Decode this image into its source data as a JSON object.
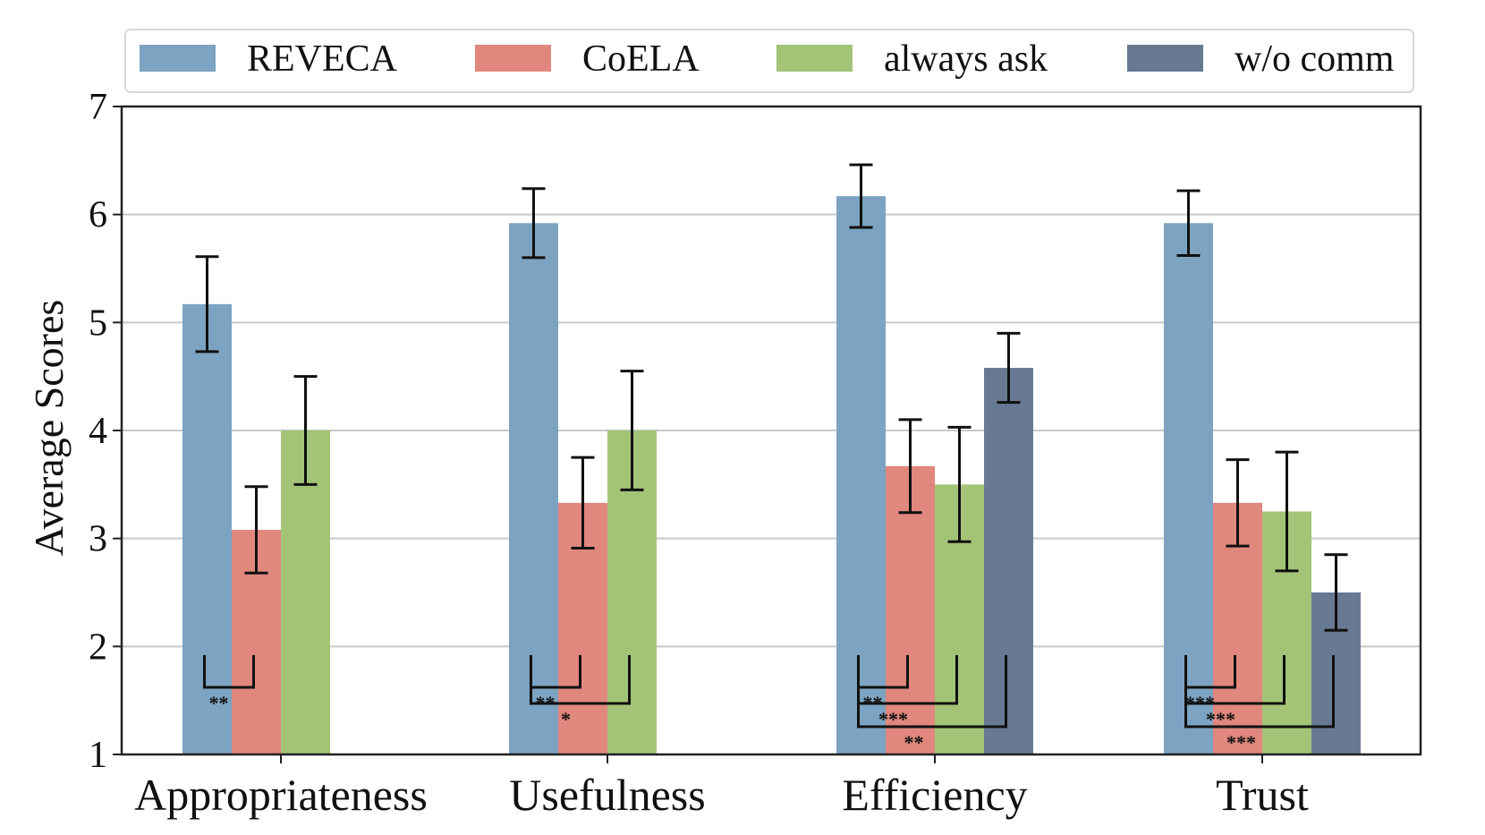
{
  "chart_data": {
    "type": "bar",
    "title": "",
    "xlabel": "",
    "ylabel": "Average Scores",
    "ylim": [
      1,
      7
    ],
    "yticks": [
      1,
      2,
      3,
      4,
      5,
      6,
      7
    ],
    "grid": "horizontal",
    "legend_position": "top",
    "categories": [
      "Appropriateness",
      "Usefulness",
      "Efficiency",
      "Trust"
    ],
    "series": [
      {
        "name": "REVECA",
        "color": "#7ca3c1",
        "values": [
          5.17,
          5.92,
          6.17,
          5.92
        ],
        "errors": [
          0.44,
          0.32,
          0.29,
          0.3
        ]
      },
      {
        "name": "CoELA",
        "color": "#e0877e",
        "values": [
          3.08,
          3.33,
          3.67,
          3.33
        ],
        "errors": [
          0.4,
          0.42,
          0.43,
          0.4
        ]
      },
      {
        "name": "always ask",
        "color": "#a3c477",
        "values": [
          4.0,
          4.0,
          3.5,
          3.25
        ],
        "errors": [
          0.5,
          0.55,
          0.53,
          0.55
        ]
      },
      {
        "name": "w/o comm",
        "color": "#687a93",
        "values": [
          null,
          null,
          4.58,
          2.5
        ],
        "errors": [
          null,
          null,
          0.32,
          0.35
        ]
      }
    ],
    "significance": [
      {
        "category": 0,
        "to_series": 1,
        "label": "**"
      },
      {
        "category": 1,
        "to_series": 1,
        "label": "**"
      },
      {
        "category": 1,
        "to_series": 2,
        "label": "*"
      },
      {
        "category": 2,
        "to_series": 1,
        "label": "**"
      },
      {
        "category": 2,
        "to_series": 2,
        "label": "***"
      },
      {
        "category": 2,
        "to_series": 3,
        "label": "**"
      },
      {
        "category": 3,
        "to_series": 1,
        "label": "***"
      },
      {
        "category": 3,
        "to_series": 2,
        "label": "***"
      },
      {
        "category": 3,
        "to_series": 3,
        "label": "***"
      }
    ]
  }
}
